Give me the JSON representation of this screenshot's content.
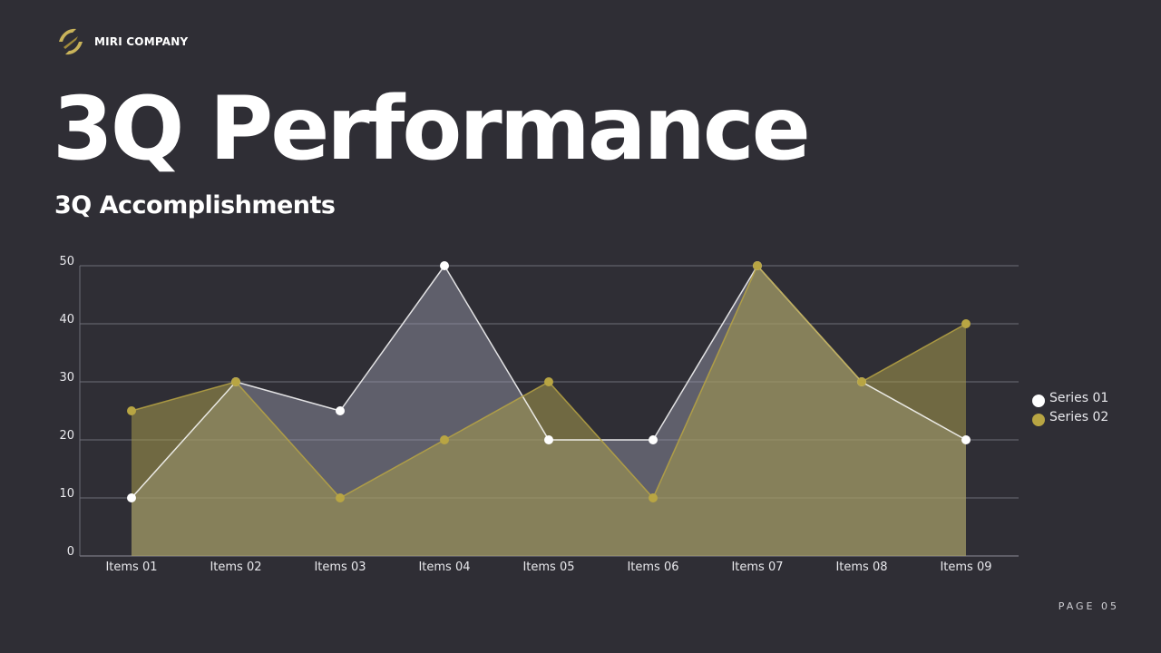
{
  "brand": {
    "name": "MIRI COMPANY",
    "accent": "#b8a543"
  },
  "header": {
    "title": "3Q Performance",
    "subtitle": "3Q Accomplishments"
  },
  "footer": {
    "page_label": "PAGE 05"
  },
  "chart_data": {
    "type": "area",
    "categories": [
      "Items 01",
      "Items 02",
      "Items 03",
      "Items 04",
      "Items 05",
      "Items 06",
      "Items 07",
      "Items 08",
      "Items 09"
    ],
    "series": [
      {
        "name": "Series 01",
        "values": [
          10,
          30,
          25,
          50,
          20,
          20,
          50,
          30,
          20
        ],
        "color": "#ffffff",
        "fill": "#9c9bad"
      },
      {
        "name": "Series 02",
        "values": [
          25,
          30,
          10,
          20,
          30,
          10,
          50,
          30,
          40
        ],
        "color": "#b8a543",
        "fill": "#a69a4d"
      }
    ],
    "ylim": [
      0,
      50
    ],
    "yticks": [
      0,
      10,
      20,
      30,
      40,
      50
    ],
    "grid": true,
    "legend": "right"
  }
}
